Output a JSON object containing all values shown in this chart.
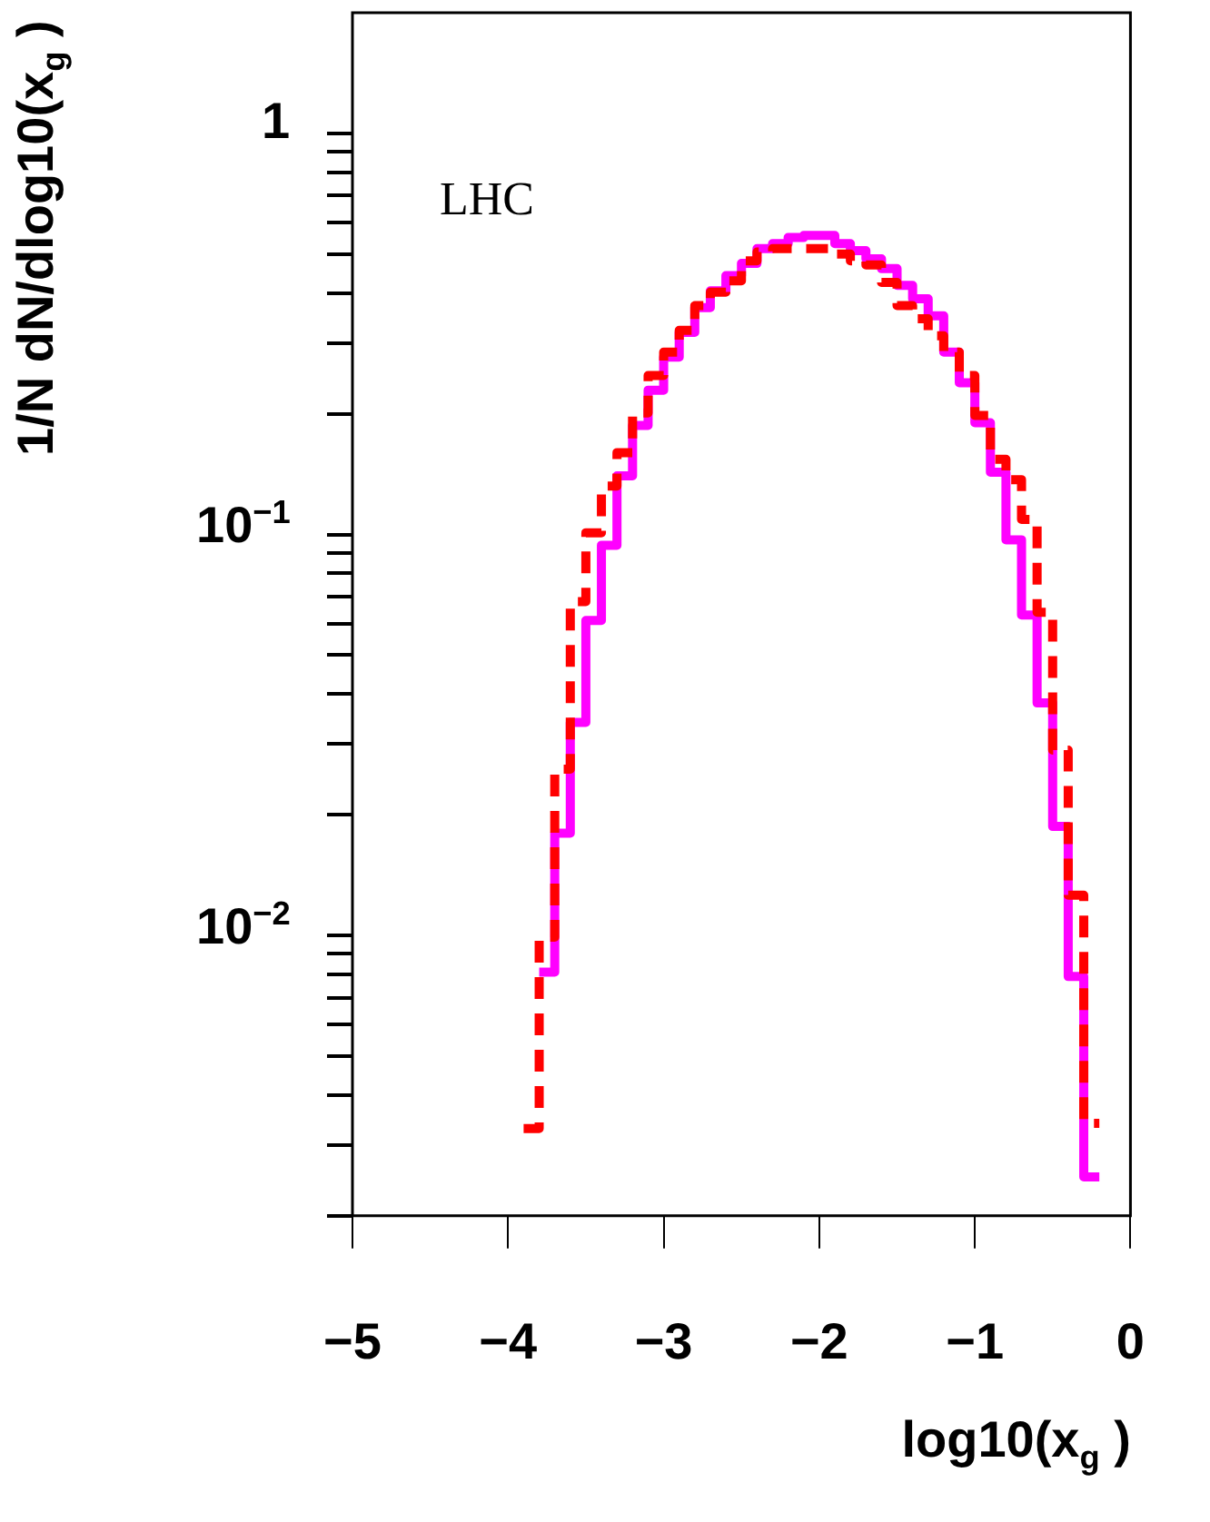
{
  "chart_data": {
    "type": "histogram",
    "xlabel": "log10(x$_{g}$ )",
    "ylabel": "1/N dN/dlog10(x$_{g}$ )",
    "annotations": [
      "LHC"
    ],
    "bins": [
      -3.9,
      -3.8,
      -3.7,
      -3.6,
      -3.5,
      -3.4,
      -3.3,
      -3.2,
      -3.1,
      -3.0,
      -2.9,
      -2.8,
      -2.7,
      -2.6,
      -2.5,
      -2.4,
      -2.3,
      -2.2,
      -2.1,
      -2.0,
      -1.9,
      -1.8,
      -1.7,
      -1.6,
      -1.5,
      -1.4,
      -1.3,
      -1.2,
      -1.1,
      -1.0,
      -0.9,
      -0.8,
      -0.7,
      -0.6,
      -0.5,
      -0.4,
      -0.3,
      -0.2
    ],
    "series": [
      {
        "color": "#ff00ff",
        "line_style": "solid",
        "bins": [
          -3.8,
          -3.7,
          -3.6,
          -3.5,
          -3.4,
          -3.3,
          -3.2,
          -3.1,
          -3.0,
          -2.9,
          -2.8,
          -2.7,
          -2.6,
          -2.5,
          -2.4,
          -2.3,
          -2.2,
          -2.1,
          -2.0,
          -1.9,
          -1.8,
          -1.7,
          -1.6,
          -1.5,
          -1.4,
          -1.3,
          -1.2,
          -1.1,
          -1.0,
          -0.9,
          -0.8,
          -0.7,
          -0.6,
          -0.5,
          -0.4,
          -0.3,
          -0.2
        ],
        "values": [
          0.0081,
          0.018,
          0.034,
          0.061,
          0.094,
          0.14,
          0.187,
          0.229,
          0.277,
          0.319,
          0.368,
          0.405,
          0.442,
          0.474,
          0.516,
          0.531,
          0.55,
          0.557,
          0.557,
          0.531,
          0.51,
          0.487,
          0.46,
          0.418,
          0.387,
          0.351,
          0.285,
          0.239,
          0.19,
          0.143,
          0.097,
          0.063,
          0.038,
          0.0187,
          0.0079,
          0.0025
        ]
      },
      {
        "color": "#ff0000",
        "line_style": "dashed",
        "values": [
          0.0033,
          0.0099,
          0.026,
          0.068,
          0.101,
          0.132,
          0.16,
          0.201,
          0.249,
          0.285,
          0.323,
          0.372,
          0.402,
          0.429,
          0.481,
          0.506,
          0.516,
          0.516,
          0.516,
          0.516,
          0.5,
          0.481,
          0.47,
          0.425,
          0.372,
          0.345,
          0.313,
          0.285,
          0.249,
          0.198,
          0.154,
          0.137,
          0.109,
          0.064,
          0.029,
          0.0126,
          0.0034
        ]
      }
    ],
    "log": "y",
    "xlim": [
      -5,
      0
    ],
    "ylim": [
      0.002,
      2
    ],
    "xticks": [
      {
        "value": -5,
        "label": "−5"
      },
      {
        "value": -4,
        "label": "−4"
      },
      {
        "value": -3,
        "label": "−3"
      },
      {
        "value": -2,
        "label": "−2"
      },
      {
        "value": -1,
        "label": "−1"
      },
      {
        "value": 0,
        "label": "0"
      }
    ],
    "yticks": [
      {
        "value": 0.002,
        "label": null
      },
      {
        "value": 0.003,
        "label": null
      },
      {
        "value": 0.004,
        "label": null
      },
      {
        "value": 0.005,
        "label": null
      },
      {
        "value": 0.006,
        "label": null
      },
      {
        "value": 0.007,
        "label": null
      },
      {
        "value": 0.008,
        "label": null
      },
      {
        "value": 0.009,
        "label": null
      },
      {
        "value": 0.01,
        "label": "10$^{−2}$"
      },
      {
        "value": 0.02,
        "label": null
      },
      {
        "value": 0.03,
        "label": null
      },
      {
        "value": 0.04,
        "label": null
      },
      {
        "value": 0.05,
        "label": null
      },
      {
        "value": 0.06,
        "label": null
      },
      {
        "value": 0.07,
        "label": null
      },
      {
        "value": 0.08,
        "label": null
      },
      {
        "value": 0.09,
        "label": null
      },
      {
        "value": 0.1,
        "label": "10$^{−1}$"
      },
      {
        "value": 0.2,
        "label": null
      },
      {
        "value": 0.3,
        "label": null
      },
      {
        "value": 0.4,
        "label": null
      },
      {
        "value": 0.5,
        "label": null
      },
      {
        "value": 0.6,
        "label": null
      },
      {
        "value": 0.7,
        "label": null
      },
      {
        "value": 0.8,
        "label": null
      },
      {
        "value": 0.9,
        "label": null
      },
      {
        "value": 1,
        "label": "1"
      }
    ],
    "grid": false,
    "legend": false
  }
}
